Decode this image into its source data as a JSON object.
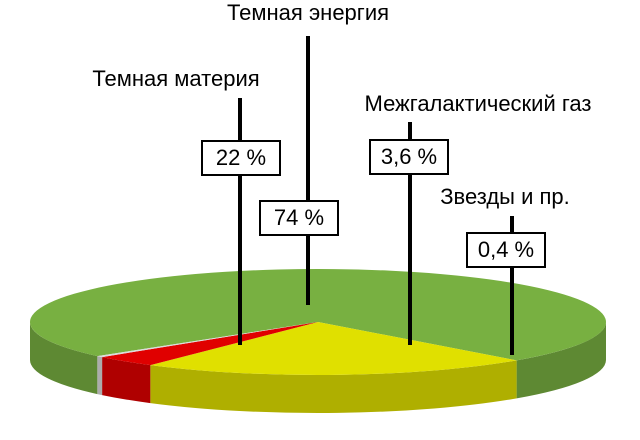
{
  "chart_data": {
    "type": "pie",
    "categories": [
      "Темная энергия",
      "Темная материя",
      "Межгалактический газ",
      "Звезды и пр."
    ],
    "values": [
      74,
      22,
      3.6,
      0.4
    ],
    "value_labels": [
      "74 %",
      "22 %",
      "3,6 %",
      "0,4 %"
    ],
    "colors": [
      "#78b041",
      "#e0e000",
      "#e00000",
      "#dcdcdc"
    ]
  }
}
